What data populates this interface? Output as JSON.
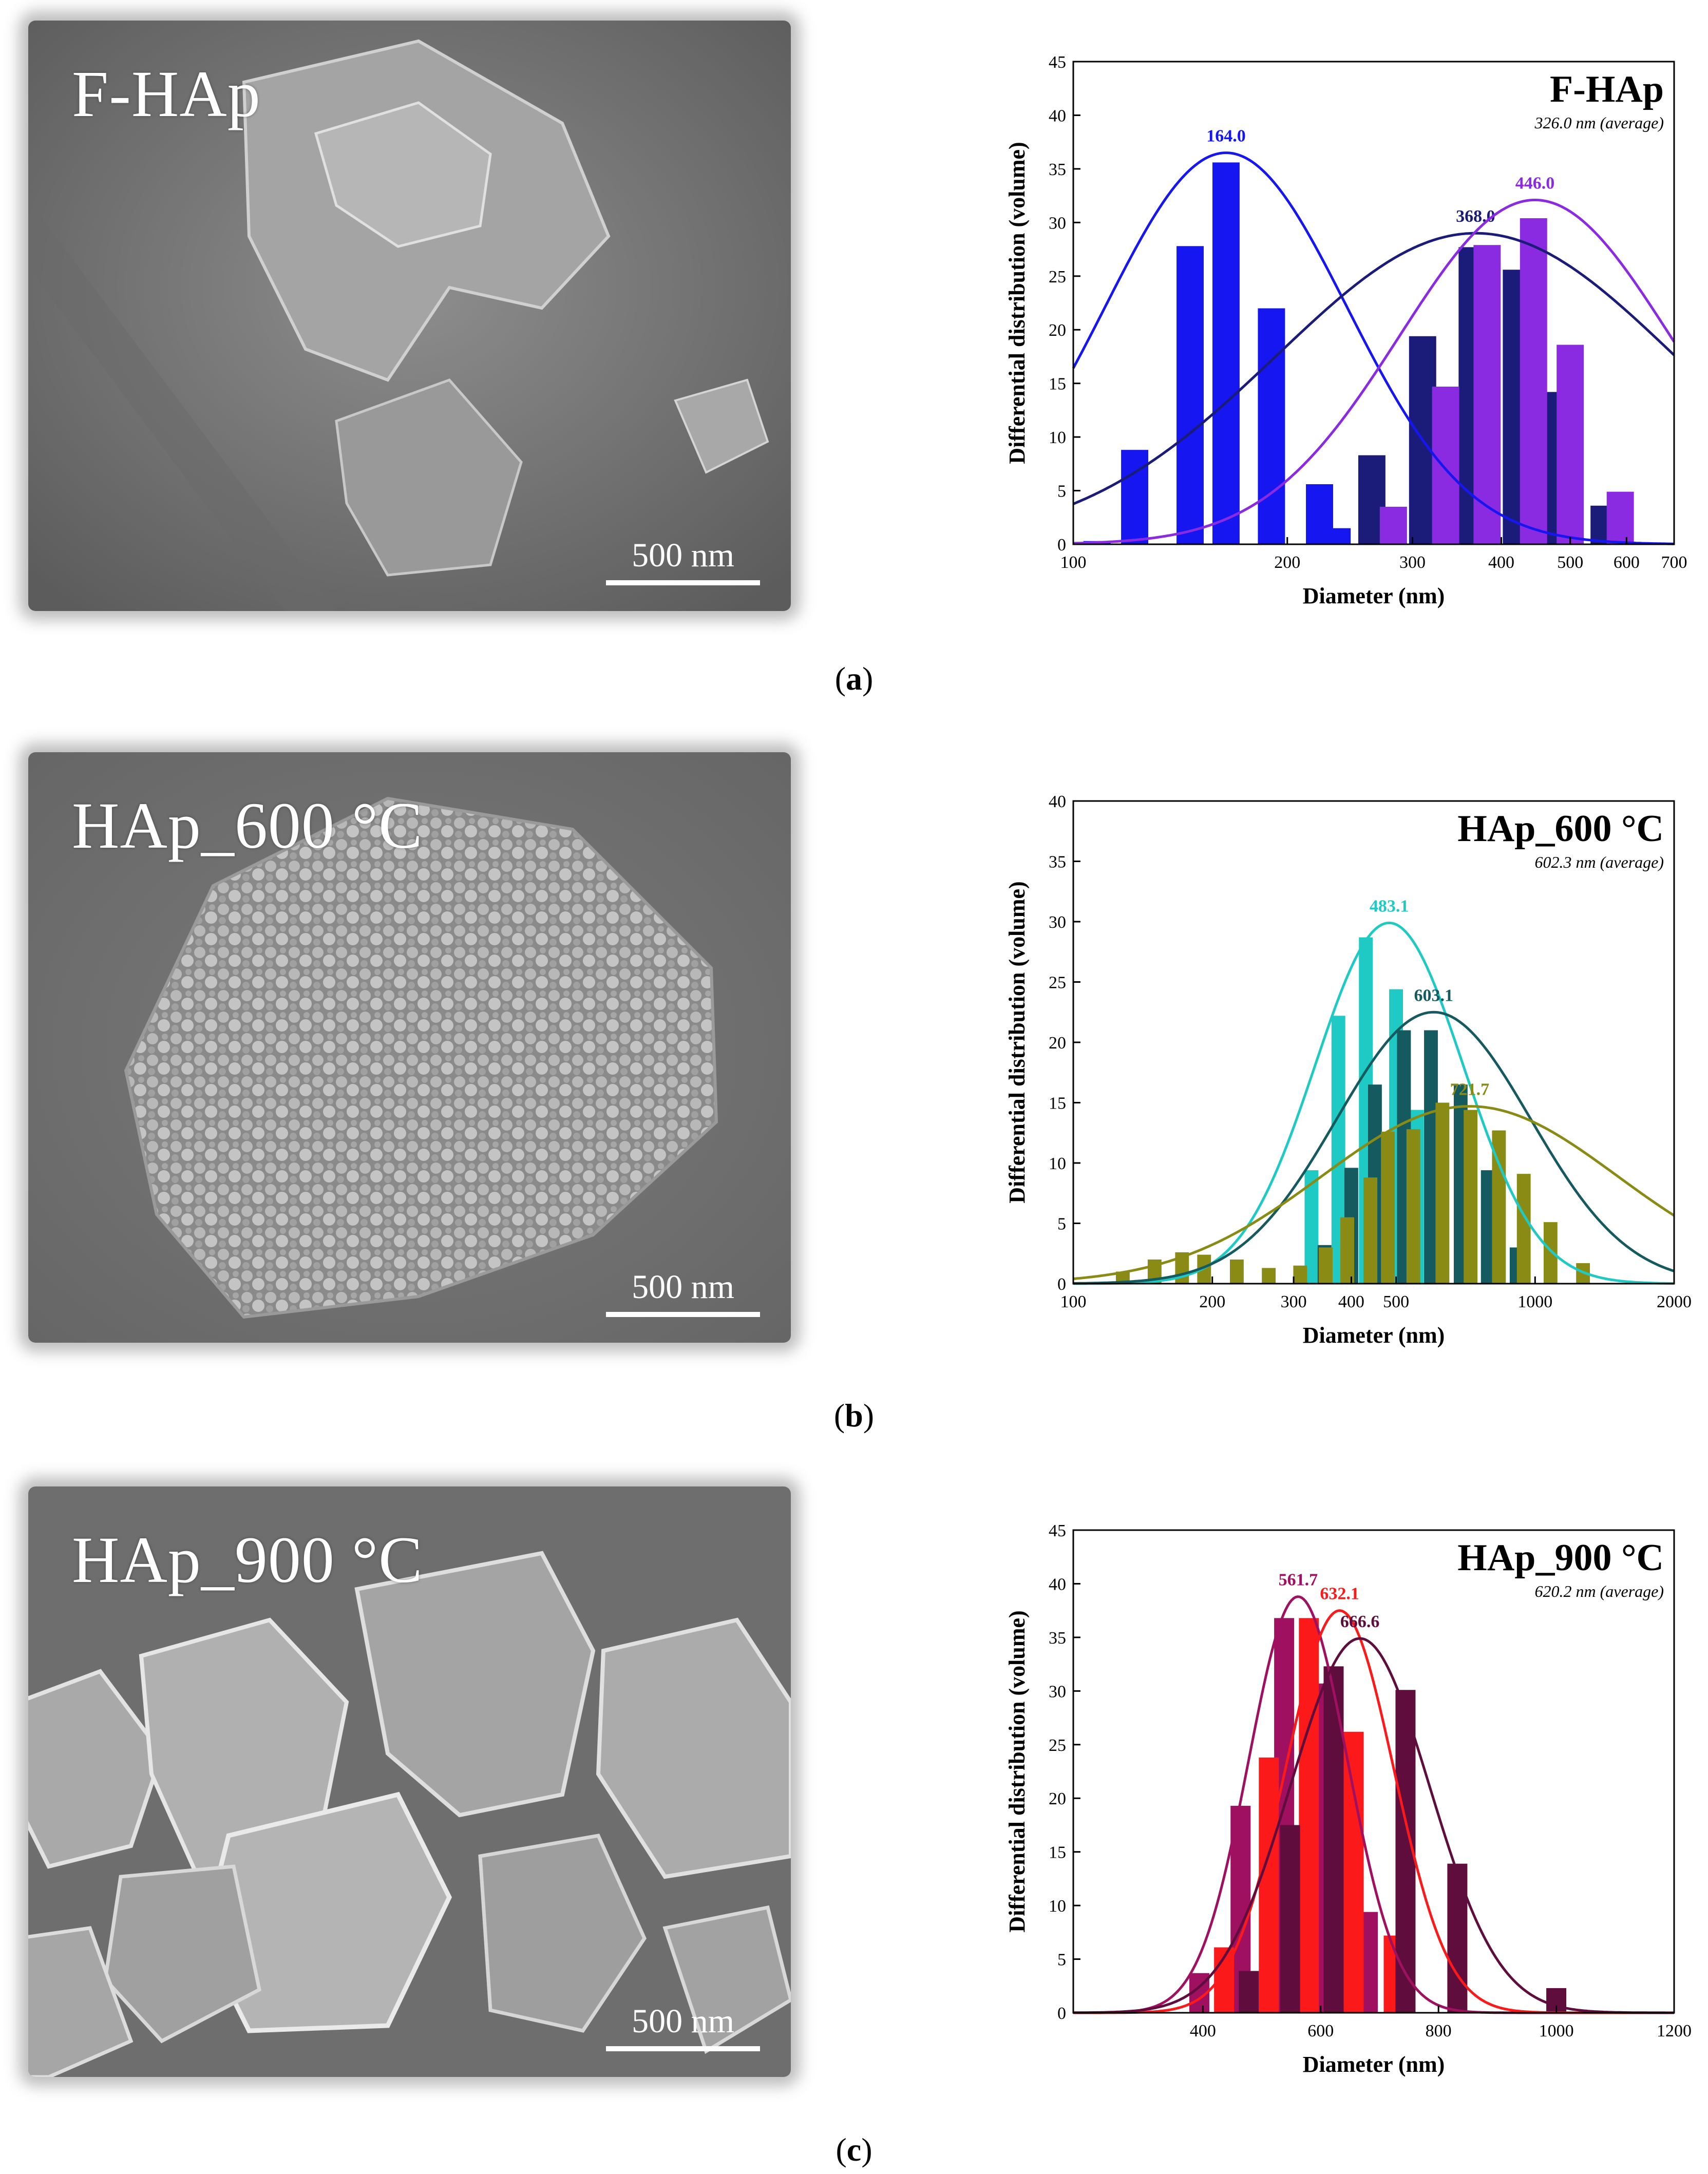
{
  "panels": [
    {
      "sem_label": "F-HAp",
      "scale_text": "500 nm",
      "caption": {
        "open": "(",
        "letter": "a",
        "close": ")"
      },
      "chart_data": {
        "type": "bar",
        "title": "F-HAp",
        "subtitle": "326.0 nm (average)",
        "xlabel": "Diameter (nm)",
        "ylabel": "Differential distribution (volume)",
        "xscale": "log",
        "xlim": [
          100,
          700
        ],
        "ylim": [
          0,
          45
        ],
        "xticks": [
          100,
          200,
          300,
          400,
          500,
          600,
          700
        ],
        "yticks": [
          0,
          5,
          10,
          15,
          20,
          25,
          30,
          35,
          40,
          45
        ],
        "bar_width_ratio": 1.045,
        "series": [
          {
            "color": "#1616f0",
            "bars": [
              [
                108,
                0.3
              ],
              [
                122,
                8.8
              ],
              [
                146,
                27.8
              ],
              [
                164,
                35.6
              ],
              [
                190,
                22.0
              ],
              [
                222,
                5.6
              ],
              [
                235,
                1.5
              ]
            ],
            "fit": {
              "peak": 164.0,
              "height": 36.5,
              "sigma": 0.17
            },
            "peak_label": "164.0"
          },
          {
            "color": "#1b1c7a",
            "bars": [
              [
                263,
                8.3
              ],
              [
                310,
                19.4
              ],
              [
                364,
                27.7
              ],
              [
                420,
                25.6
              ],
              [
                480,
                14.2
              ],
              [
                558,
                3.6
              ]
            ],
            "fit": {
              "peak": 368.0,
              "height": 29.0,
              "sigma": 0.28
            },
            "peak_label": "368.0"
          },
          {
            "color": "#8a2be2",
            "bars": [
              [
                282,
                3.5
              ],
              [
                334,
                14.7
              ],
              [
                382,
                27.9
              ],
              [
                444,
                30.4
              ],
              [
                500,
                18.6
              ],
              [
                588,
                4.9
              ]
            ],
            "fit": {
              "peak": 446.0,
              "height": 32.1,
              "sigma": 0.19
            },
            "peak_label": "446.0"
          }
        ]
      }
    },
    {
      "sem_label": "HAp_600 °C",
      "scale_text": "500 nm",
      "caption": {
        "open": "(",
        "letter": "b",
        "close": ")"
      },
      "chart_data": {
        "type": "bar",
        "title": "HAp_600 °C",
        "subtitle": "602.3 nm (average)",
        "xlabel": "Diameter (nm)",
        "ylabel": "Differential distribution (volume)",
        "xscale": "log",
        "xlim": [
          100,
          2000
        ],
        "ylim": [
          0,
          40
        ],
        "xticks": [
          100,
          200,
          300,
          400,
          500,
          1000,
          2000
        ],
        "yticks": [
          0,
          5,
          10,
          15,
          20,
          25,
          30,
          35,
          40
        ],
        "bar_width_ratio": 1.035,
        "series": [
          {
            "color": "#1fc9c4",
            "bars": [
              [
                328,
                9.4
              ],
              [
                375,
                22.2
              ],
              [
                430,
                28.7
              ],
              [
                500,
                24.4
              ],
              [
                555,
                14.4
              ],
              [
                620,
                2.4
              ]
            ],
            "fit": {
              "peak": 483.1,
              "height": 29.9,
              "sigma": 0.16
            },
            "peak_label": "483.1"
          },
          {
            "color": "#145a5e",
            "bars": [
              [
                350,
                3.2
              ],
              [
                400,
                9.6
              ],
              [
                450,
                16.5
              ],
              [
                520,
                21.0
              ],
              [
                595,
                21.0
              ],
              [
                690,
                16.5
              ],
              [
                790,
                9.4
              ],
              [
                912,
                3.0
              ]
            ],
            "fit": {
              "peak": 603.1,
              "height": 22.5,
              "sigma": 0.21
            },
            "peak_label": "603.1"
          },
          {
            "color": "#8a8b14",
            "bars": [
              [
                128,
                1.0
              ],
              [
                150,
                2.0
              ],
              [
                172,
                2.6
              ],
              [
                192,
                2.4
              ],
              [
                226,
                2.0
              ],
              [
                265,
                1.3
              ],
              [
                310,
                1.5
              ],
              [
                352,
                3.0
              ],
              [
                392,
                5.5
              ],
              [
                440,
                8.8
              ],
              [
                480,
                12.6
              ],
              [
                545,
                12.8
              ],
              [
                630,
                15.0
              ],
              [
                725,
                14.4
              ],
              [
                835,
                12.7
              ],
              [
                945,
                9.1
              ],
              [
                1080,
                5.1
              ],
              [
                1270,
                1.7
              ]
            ],
            "fit": {
              "peak": 721.7,
              "height": 14.7,
              "sigma": 0.32
            },
            "peak_label": "721.7"
          }
        ]
      }
    },
    {
      "sem_label": "HAp_900 °C",
      "scale_text": "500 nm",
      "caption": {
        "open": "(",
        "letter": "c",
        "close": ")"
      },
      "chart_data": {
        "type": "bar",
        "title": "HAp_900 °C",
        "subtitle": "620.2 nm (average)",
        "xlabel": "Diameter (nm)",
        "ylabel": "Differential distribution (volume)",
        "xscale": "linear",
        "xlim": [
          180,
          1200
        ],
        "ylim": [
          0,
          45
        ],
        "xticks": [
          400,
          600,
          800,
          1000,
          1200
        ],
        "yticks": [
          0,
          5,
          10,
          15,
          20,
          25,
          30,
          35,
          40,
          45
        ],
        "bar_width_data": 34,
        "series": [
          {
            "color": "#a01060",
            "bars": [
              [
                394,
                3.7
              ],
              [
                464,
                19.3
              ],
              [
                538,
                36.8
              ],
              [
                608,
                30.7
              ],
              [
                680,
                9.4
              ]
            ],
            "fit": {
              "peak": 561.7,
              "height": 38.8,
              "center": 561.7,
              "width": 84
            },
            "peak_label": "561.7"
          },
          {
            "color": "#fb1919",
            "bars": [
              [
                436,
                6.1
              ],
              [
                512,
                23.8
              ],
              [
                580,
                36.8
              ],
              [
                656,
                26.2
              ],
              [
                724,
                7.2
              ]
            ],
            "fit": {
              "peak": 632.1,
              "height": 37.5,
              "center": 632.1,
              "width": 92
            },
            "peak_label": "632.1"
          },
          {
            "color": "#5e0d3d",
            "bars": [
              [
                478,
                3.9
              ],
              [
                548,
                17.5
              ],
              [
                622,
                32.3
              ],
              [
                744,
                30.1
              ],
              [
                832,
                13.9
              ],
              [
                1000,
                2.3
              ]
            ],
            "fit": {
              "peak": 666.6,
              "height": 34.9,
              "center": 666.6,
              "width": 118
            },
            "peak_label": "666.6"
          }
        ]
      }
    }
  ]
}
